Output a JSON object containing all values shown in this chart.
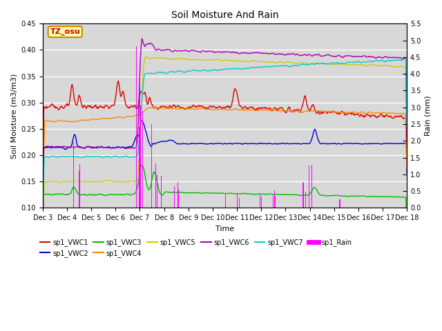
{
  "title": "Soil Moisture And Rain",
  "xlabel": "Time",
  "ylabel_left": "Soil Moisture (m3/m3)",
  "ylabel_right": "Rain (mm)",
  "site_label": "TZ_osu",
  "ylim_left": [
    0.1,
    0.45
  ],
  "ylim_right": [
    0.0,
    5.5
  ],
  "yticks_left": [
    0.1,
    0.15,
    0.2,
    0.25,
    0.3,
    0.35,
    0.4,
    0.45
  ],
  "yticks_right": [
    0.0,
    0.5,
    1.0,
    1.5,
    2.0,
    2.5,
    3.0,
    3.5,
    4.0,
    4.5,
    5.0,
    5.5
  ],
  "background_color": "#d8d8d8",
  "plot_bg_color": "#d8d8d8",
  "colors": {
    "VWC1": "#dd0000",
    "VWC2": "#0000cc",
    "VWC3": "#00bb00",
    "VWC4": "#ff8800",
    "VWC5": "#cccc00",
    "VWC6": "#aa00aa",
    "VWC7": "#00cccc",
    "Rain": "#ff00ff"
  },
  "xtick_labels": [
    "Dec 3",
    "Dec 4",
    "Dec 5",
    "Dec 6",
    "Dec 7",
    "Dec 8",
    "Dec 9",
    "Dec 10",
    "Dec 11",
    "Dec 12",
    "Dec 13",
    "Dec 14",
    "Dec 15",
    "Dec 16",
    "Dec 17",
    "Dec 18"
  ]
}
